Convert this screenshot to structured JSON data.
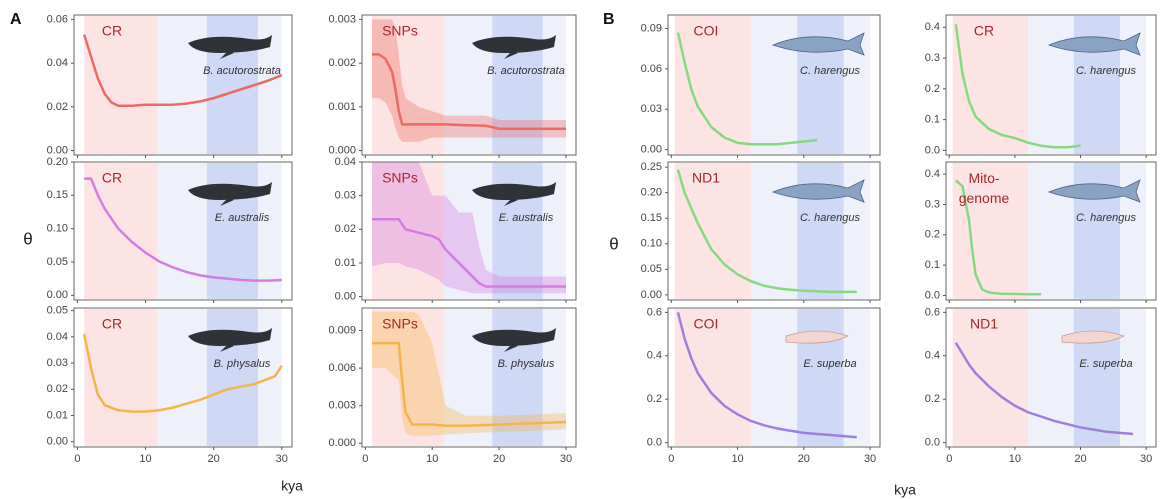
{
  "groups": [
    {
      "label": "A",
      "ylabel": "θ",
      "xlabel": "kya",
      "periods": [
        {
          "from": 1,
          "to": 11.7,
          "color": "#fde4e4"
        },
        {
          "from": 11.7,
          "to": 30,
          "color": "#eef0fa"
        },
        {
          "from": 19,
          "to": 26.5,
          "color": "#cfd8f5"
        }
      ]
    },
    {
      "label": "B",
      "ylabel": "θ",
      "xlabel": "kya",
      "periods": [
        {
          "from": 0.5,
          "to": 12,
          "color": "#fde4e4"
        },
        {
          "from": 12,
          "to": 30,
          "color": "#eef0fa"
        },
        {
          "from": 19,
          "to": 26,
          "color": "#cfd8f5"
        }
      ]
    }
  ],
  "chart_data": [
    {
      "type": "line",
      "marker": "CR",
      "species": "B. acutorostrata",
      "show_xtick_labels": false,
      "x": [
        1,
        2,
        3,
        4,
        5,
        6,
        8,
        10,
        12,
        14,
        16,
        18,
        20,
        22,
        24,
        26,
        28,
        30
      ],
      "series": [
        {
          "color": "#ec6a62",
          "values": [
            0.053,
            0.043,
            0.033,
            0.026,
            0.022,
            0.0205,
            0.0205,
            0.021,
            0.021,
            0.021,
            0.0215,
            0.0225,
            0.024,
            0.026,
            0.028,
            0.03,
            0.032,
            0.0345
          ]
        }
      ],
      "xlim": [
        -0.5,
        31.5
      ],
      "xticks": [
        0,
        10,
        20,
        30
      ],
      "ylim": [
        -0.002,
        0.062
      ],
      "yticks": [
        {
          "value": 0,
          "label": "0.00"
        },
        0.02,
        0.04,
        0.06
      ]
    },
    {
      "type": "line",
      "marker": "SNPs",
      "species": "B. acutorostrata",
      "show_xtick_labels": false,
      "x": [
        1,
        2,
        3,
        4,
        4.5,
        5,
        5.5,
        6,
        8,
        10,
        12,
        15,
        18,
        20,
        25,
        30
      ],
      "series": [
        {
          "color": "#ec6a62",
          "values": [
            0.0022,
            0.0022,
            0.0021,
            0.0018,
            0.0014,
            0.0009,
            0.0006,
            0.0006,
            0.0006,
            0.0006,
            0.0006,
            0.00058,
            0.00057,
            0.0005,
            0.0005,
            0.0005
          ],
          "upper": [
            0.003,
            0.003,
            0.003,
            0.003,
            0.0028,
            0.0022,
            0.0015,
            0.0012,
            0.001,
            0.0009,
            0.0008,
            0.0008,
            0.0008,
            0.0007,
            0.0007,
            0.0007
          ],
          "lower": [
            0.0012,
            0.0012,
            0.0011,
            0.0008,
            0.0005,
            0.0003,
            0.0002,
            0.0002,
            0.0002,
            0.0003,
            0.0003,
            0.0003,
            0.0003,
            0.0003,
            0.0003,
            0.0003
          ]
        }
      ],
      "xlim": [
        -0.5,
        31.5
      ],
      "xticks": [
        0,
        10,
        20,
        30
      ],
      "ylim": [
        -0.0001,
        0.0031
      ],
      "yticks": [
        {
          "value": 0,
          "label": "0.000"
        },
        0.001,
        0.002,
        0.003
      ]
    },
    {
      "type": "line",
      "marker": "CR",
      "species": "E. australis",
      "show_xtick_labels": false,
      "x": [
        1,
        2,
        3,
        4,
        6,
        8,
        10,
        12,
        14,
        16,
        18,
        20,
        22,
        24,
        26,
        28,
        30
      ],
      "series": [
        {
          "color": "#d47ce2",
          "values": [
            0.175,
            0.175,
            0.15,
            0.13,
            0.1,
            0.08,
            0.064,
            0.051,
            0.042,
            0.035,
            0.03,
            0.027,
            0.025,
            0.023,
            0.022,
            0.022,
            0.023
          ]
        }
      ],
      "xlim": [
        -0.5,
        31.5
      ],
      "xticks": [
        0,
        10,
        20,
        30
      ],
      "ylim": [
        -0.007,
        0.2
      ],
      "yticks": [
        {
          "value": 0,
          "label": "0.00"
        },
        0.05,
        {
          "value": 0.1,
          "label": "0.10"
        },
        0.15,
        {
          "value": 0.2,
          "label": "0.20"
        }
      ]
    },
    {
      "type": "line",
      "marker": "SNPs",
      "species": "E. australis",
      "show_xtick_labels": false,
      "x": [
        1,
        3,
        5,
        6,
        8,
        10,
        11,
        12,
        14,
        16,
        17,
        18,
        20,
        25,
        30
      ],
      "series": [
        {
          "color": "#d47ce2",
          "values": [
            0.023,
            0.023,
            0.023,
            0.02,
            0.019,
            0.018,
            0.017,
            0.014,
            0.01,
            0.006,
            0.004,
            0.003,
            0.003,
            0.003,
            0.003
          ],
          "upper": [
            0.04,
            0.04,
            0.04,
            0.04,
            0.04,
            0.03,
            0.03,
            0.03,
            0.025,
            0.025,
            0.015,
            0.008,
            0.006,
            0.006,
            0.006
          ],
          "lower": [
            0.009,
            0.01,
            0.01,
            0.009,
            0.008,
            0.006,
            0.005,
            0.003,
            0.002,
            0.001,
            0.001,
            0.001,
            0.001,
            0.001,
            0.001
          ]
        }
      ],
      "xlim": [
        -0.5,
        31.5
      ],
      "xticks": [
        0,
        10,
        20,
        30
      ],
      "ylim": [
        -0.001,
        0.04
      ],
      "yticks": [
        {
          "value": 0,
          "label": "0.00"
        },
        0.01,
        0.02,
        0.03,
        0.04
      ]
    },
    {
      "type": "line",
      "marker": "CR",
      "species": "B. physalus",
      "show_xtick_labels": true,
      "x": [
        1,
        2,
        3,
        4,
        6,
        8,
        10,
        12,
        14,
        16,
        18,
        20,
        22,
        24,
        26,
        27,
        28,
        29,
        30
      ],
      "series": [
        {
          "color": "#f4b44c",
          "values": [
            0.041,
            0.028,
            0.018,
            0.014,
            0.012,
            0.0115,
            0.0115,
            0.012,
            0.013,
            0.0145,
            0.016,
            0.018,
            0.02,
            0.021,
            0.022,
            0.023,
            0.024,
            0.025,
            0.029
          ]
        }
      ],
      "xlim": [
        -0.5,
        31.5
      ],
      "xticks": [
        0,
        10,
        20,
        30
      ],
      "ylim": [
        -0.002,
        0.051
      ],
      "yticks": [
        {
          "value": 0,
          "label": "0.00"
        },
        0.01,
        0.02,
        0.03,
        0.04,
        0.05
      ]
    },
    {
      "type": "line",
      "marker": "SNPs",
      "species": "B. physalus",
      "show_xtick_labels": true,
      "x": [
        1,
        3,
        5,
        5.5,
        6,
        7,
        8,
        10,
        12,
        15,
        20,
        25,
        30
      ],
      "series": [
        {
          "color": "#f4b44c",
          "values": [
            0.008,
            0.008,
            0.008,
            0.005,
            0.0025,
            0.0015,
            0.0015,
            0.0015,
            0.0014,
            0.0014,
            0.0015,
            0.0016,
            0.0017
          ],
          "upper": [
            0.0105,
            0.0105,
            0.0105,
            0.0105,
            0.0105,
            0.0105,
            0.0103,
            0.008,
            0.003,
            0.0022,
            0.0022,
            0.0023,
            0.0024
          ],
          "lower": [
            0.006,
            0.006,
            0.005,
            0.002,
            0.0008,
            0.0006,
            0.0006,
            0.0006,
            0.0007,
            0.0008,
            0.0009,
            0.001,
            0.0011
          ]
        }
      ],
      "xlim": [
        -0.5,
        31.5
      ],
      "xticks": [
        0,
        10,
        20,
        30
      ],
      "ylim": [
        -0.0003,
        0.0108
      ],
      "yticks": [
        {
          "value": 0,
          "label": "0.000"
        },
        0.003,
        0.006,
        0.009
      ]
    },
    {
      "type": "line",
      "marker": "COI",
      "species": "C. harengus",
      "show_xtick_labels": false,
      "x": [
        1,
        2,
        3,
        4,
        6,
        8,
        10,
        12,
        14,
        16,
        18,
        20,
        22
      ],
      "series": [
        {
          "color": "#86d97f",
          "values": [
            0.087,
            0.065,
            0.045,
            0.032,
            0.017,
            0.009,
            0.005,
            0.004,
            0.004,
            0.004,
            0.005,
            0.006,
            0.007
          ]
        }
      ],
      "xlim": [
        -0.5,
        31.5
      ],
      "xticks": [
        0,
        10,
        20,
        30
      ],
      "ylim": [
        -0.004,
        0.1
      ],
      "yticks": [
        {
          "value": 0,
          "label": "0.00"
        },
        0.03,
        0.06,
        0.09
      ]
    },
    {
      "type": "line",
      "marker": "CR",
      "species": "C. harengus",
      "show_xtick_labels": false,
      "x": [
        1,
        2,
        3,
        4,
        6,
        8,
        10,
        12,
        14,
        16,
        18,
        20
      ],
      "series": [
        {
          "color": "#86d97f",
          "values": [
            0.41,
            0.25,
            0.16,
            0.11,
            0.07,
            0.05,
            0.04,
            0.025,
            0.015,
            0.01,
            0.01,
            0.015
          ]
        }
      ],
      "xlim": [
        -0.5,
        31.5
      ],
      "xticks": [
        0,
        10,
        20,
        30
      ],
      "ylim": [
        -0.015,
        0.44
      ],
      "yticks": [
        {
          "value": 0,
          "label": "0.0"
        },
        0.1,
        0.2,
        0.3,
        0.4
      ]
    },
    {
      "type": "line",
      "marker": "ND1",
      "species": "C. harengus",
      "show_xtick_labels": false,
      "x": [
        1,
        2,
        4,
        6,
        8,
        10,
        12,
        14,
        16,
        18,
        20,
        22,
        24,
        26,
        28
      ],
      "series": [
        {
          "color": "#86d97f",
          "values": [
            0.245,
            0.2,
            0.14,
            0.09,
            0.06,
            0.04,
            0.027,
            0.018,
            0.013,
            0.01,
            0.008,
            0.007,
            0.006,
            0.006,
            0.006
          ]
        }
      ],
      "xlim": [
        -0.5,
        31.5
      ],
      "xticks": [
        0,
        10,
        20,
        30
      ],
      "ylim": [
        -0.01,
        0.26
      ],
      "yticks": [
        {
          "value": 0,
          "label": "0.00"
        },
        0.05,
        {
          "value": 0.1,
          "label": "0.10"
        },
        0.15,
        {
          "value": 0.2,
          "label": "0.20"
        },
        0.25
      ]
    },
    {
      "type": "line",
      "marker": [
        "Mito-",
        "genome"
      ],
      "species": "C. harengus",
      "show_xtick_labels": false,
      "x": [
        1,
        2,
        3,
        3.5,
        4,
        5,
        6,
        8,
        10,
        12,
        14
      ],
      "series": [
        {
          "color": "#86d97f",
          "values": [
            0.38,
            0.36,
            0.25,
            0.15,
            0.07,
            0.02,
            0.01,
            0.005,
            0.005,
            0.004,
            0.004
          ]
        }
      ],
      "xlim": [
        -0.5,
        31.5
      ],
      "xticks": [
        0,
        10,
        20,
        30
      ],
      "ylim": [
        -0.015,
        0.44
      ],
      "yticks": [
        {
          "value": 0,
          "label": "0.0"
        },
        0.1,
        0.2,
        0.3,
        0.4
      ]
    },
    {
      "type": "line",
      "marker": "COI",
      "species": "E. superba",
      "show_xtick_labels": true,
      "x": [
        1,
        2,
        3,
        4,
        6,
        8,
        10,
        12,
        14,
        16,
        18,
        20,
        22,
        24,
        26,
        28
      ],
      "series": [
        {
          "color": "#9d80da",
          "values": [
            0.6,
            0.48,
            0.39,
            0.32,
            0.23,
            0.17,
            0.13,
            0.1,
            0.08,
            0.065,
            0.055,
            0.045,
            0.04,
            0.035,
            0.03,
            0.025
          ]
        }
      ],
      "xlim": [
        -0.5,
        31.5
      ],
      "xticks": [
        0,
        10,
        20,
        30
      ],
      "ylim": [
        -0.02,
        0.62
      ],
      "yticks": [
        {
          "value": 0,
          "label": "0.0"
        },
        0.2,
        0.4,
        0.6
      ]
    },
    {
      "type": "line",
      "marker": "ND1",
      "species": "E. superba",
      "show_xtick_labels": true,
      "x": [
        1,
        2,
        3,
        4,
        6,
        8,
        10,
        12,
        14,
        16,
        18,
        20,
        22,
        24,
        26,
        28
      ],
      "series": [
        {
          "color": "#9d80da",
          "values": [
            0.46,
            0.41,
            0.36,
            0.32,
            0.26,
            0.21,
            0.17,
            0.14,
            0.12,
            0.1,
            0.085,
            0.07,
            0.06,
            0.05,
            0.045,
            0.04
          ]
        }
      ],
      "xlim": [
        -0.5,
        31.5
      ],
      "xticks": [
        0,
        10,
        20,
        30
      ],
      "ylim": [
        -0.02,
        0.62
      ],
      "yticks": [
        {
          "value": 0,
          "label": "0.0"
        },
        0.2,
        0.4,
        0.6
      ]
    }
  ]
}
